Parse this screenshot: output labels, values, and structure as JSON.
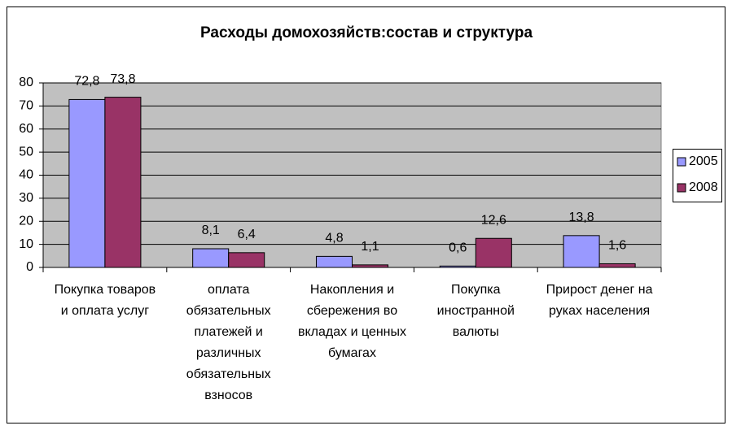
{
  "chart_data": {
    "type": "bar",
    "title": "Расходы домохозяйств:состав и структура",
    "categories": [
      "Покупка товаров и оплата услуг",
      "оплата обязательных платежей и различных обязательных взносов",
      "Накопления и сбережения во вкладах и ценных бумагах",
      "Покупка иностранной валюты",
      "Прирост денег на руках населения"
    ],
    "series": [
      {
        "name": "2005",
        "color": "#9999ff",
        "values": [
          72.8,
          8.1,
          4.8,
          0.6,
          13.8
        ],
        "value_labels": [
          "72,8",
          "8,1",
          "4,8",
          "0,6",
          "13,8"
        ]
      },
      {
        "name": "2008",
        "color": "#993366",
        "values": [
          73.8,
          6.4,
          1.1,
          12.6,
          1.6
        ],
        "value_labels": [
          "73,8",
          "6,4",
          "1,1",
          "12,6",
          "1,6"
        ]
      }
    ],
    "ylim": [
      0,
      80
    ],
    "yticks": [
      0,
      10,
      20,
      30,
      40,
      50,
      60,
      70,
      80
    ],
    "grid": true,
    "legend": "right"
  }
}
